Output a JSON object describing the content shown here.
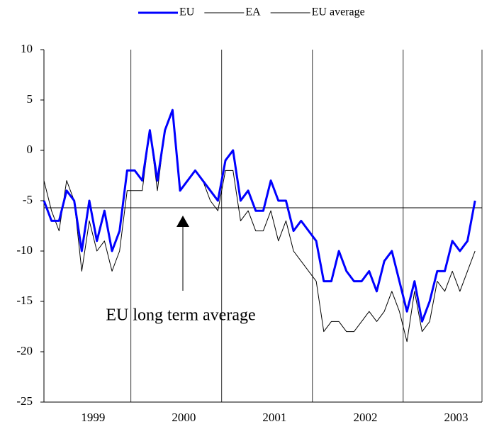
{
  "chart_data": {
    "type": "line",
    "categories": [
      null,
      null,
      null,
      null,
      null,
      null,
      "1999",
      null,
      null,
      null,
      null,
      null,
      null,
      null,
      null,
      null,
      null,
      null,
      "2000",
      null,
      null,
      null,
      null,
      null,
      null,
      null,
      null,
      null,
      null,
      null,
      "2001",
      null,
      null,
      null,
      null,
      null,
      null,
      null,
      null,
      null,
      null,
      null,
      "2002",
      null,
      null,
      null,
      null,
      null,
      null,
      null,
      null,
      null,
      null,
      null,
      "2003",
      null,
      null,
      null
    ],
    "series": [
      {
        "name": "EU",
        "color": "#0000ff",
        "values": [
          -5,
          -7,
          -7,
          -4,
          -5,
          -10,
          -5,
          -9,
          -6,
          -10,
          -8,
          -2,
          -2,
          -3,
          2,
          -3,
          2,
          4,
          -4,
          -3,
          -2,
          -3,
          -4,
          -5,
          -1,
          0,
          -5,
          -4,
          -6,
          -6,
          -3,
          -5,
          -5,
          -8,
          -7,
          -8,
          -9,
          -13,
          -13,
          -10,
          -12,
          -13,
          -13,
          -12,
          -14,
          -11,
          -10,
          -13,
          -16,
          -13,
          -17,
          -15,
          -12,
          -12,
          -9,
          -10,
          -9,
          -5
        ]
      },
      {
        "name": "EA",
        "color": "#000000",
        "values": [
          -3,
          -6,
          -8,
          -3,
          -5,
          -12,
          -7,
          -10,
          -9,
          -12,
          -10,
          -4,
          -4,
          -4,
          2,
          -4,
          2,
          4,
          -4,
          -3,
          -2,
          -3,
          -5,
          -6,
          -2,
          -2,
          -7,
          -6,
          -8,
          -8,
          -6,
          -9,
          -7,
          -10,
          -11,
          -12,
          -13,
          -18,
          -17,
          -17,
          -18,
          -18,
          -17,
          -16,
          -17,
          -16,
          -14,
          -16,
          -19,
          -14,
          -18,
          -17,
          -13,
          -14,
          -12,
          -14,
          -12,
          -10
        ]
      }
    ],
    "average": {
      "name": "EU average",
      "value": -5.7,
      "color": "#000000"
    },
    "annotation": "EU long term  average",
    "ylim": [
      -25,
      10
    ],
    "yticks": [
      -25,
      -20,
      -15,
      -10,
      -5,
      0,
      5,
      10
    ],
    "legend": "top"
  }
}
